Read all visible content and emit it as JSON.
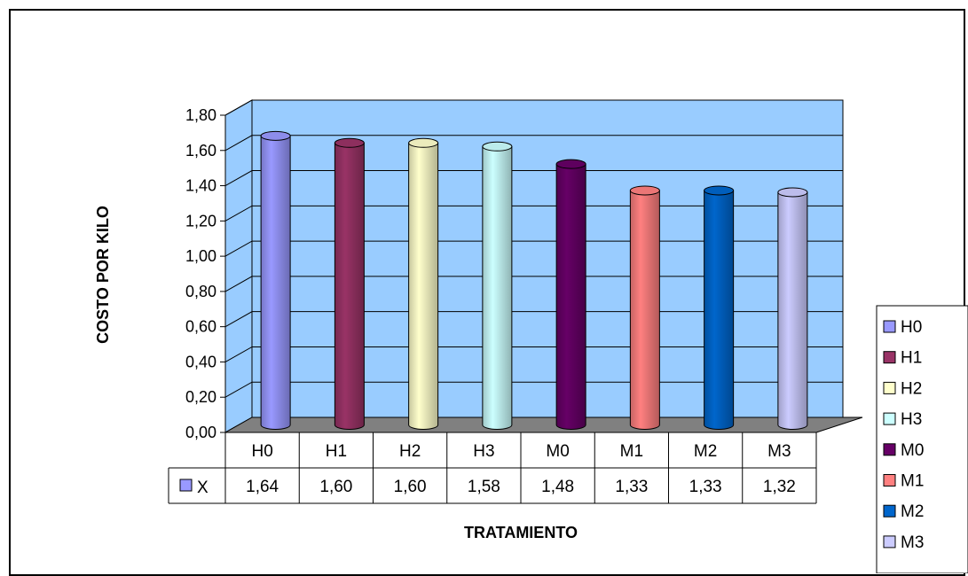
{
  "chart_data": {
    "type": "bar",
    "subtype": "3d-cylinder",
    "title": "",
    "xlabel": "TRATAMIENTO",
    "ylabel": "COSTO POR KILO",
    "ylim": [
      0,
      1.8
    ],
    "y_ticks": [
      "0,00",
      "0,20",
      "0,40",
      "0,60",
      "0,80",
      "1,00",
      "1,20",
      "1,40",
      "1,60",
      "1,80"
    ],
    "categories": [
      "H0",
      "H1",
      "H2",
      "H3",
      "M0",
      "M1",
      "M2",
      "M3"
    ],
    "series": [
      {
        "name": "X",
        "values": [
          1.64,
          1.6,
          1.6,
          1.58,
          1.48,
          1.33,
          1.33,
          1.32
        ]
      }
    ],
    "data_table": {
      "series_label": "X",
      "values": [
        "1,64",
        "1,60",
        "1,60",
        "1,58",
        "1,48",
        "1,33",
        "1,33",
        "1,32"
      ]
    },
    "bar_colors": [
      "#9999ff",
      "#993366",
      "#ffffcc",
      "#ccffff",
      "#660066",
      "#ff8080",
      "#0066cc",
      "#ccccff"
    ],
    "plot_background": "#99ccff",
    "floor_color": "#808080",
    "grid": true,
    "legend": {
      "position": "right",
      "entries": [
        "H0",
        "H1",
        "H2",
        "H3",
        "M0",
        "M1",
        "M2",
        "M3"
      ]
    }
  }
}
